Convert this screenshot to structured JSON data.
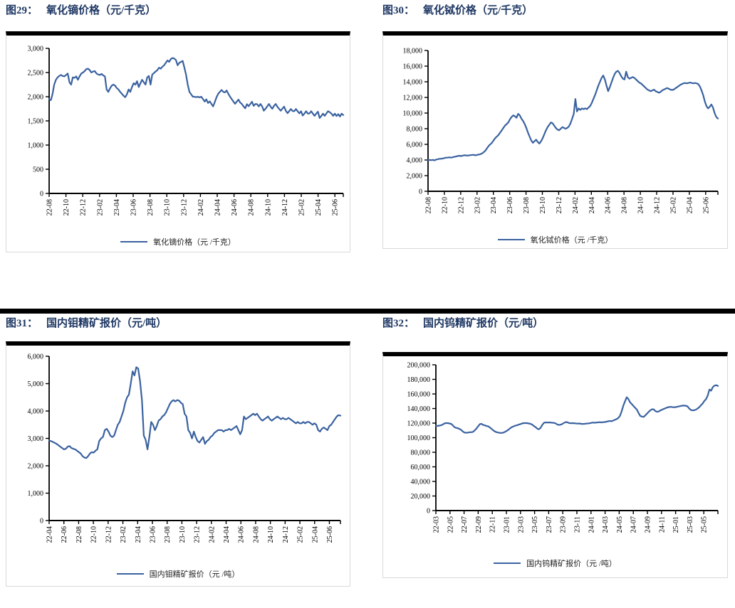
{
  "page": {
    "background": "#ffffff",
    "divider_color": "#000000",
    "title_color": "#1F3864",
    "line_color": "#3A62A0"
  },
  "figures": [
    {
      "id": "fig29",
      "label": "图29：",
      "title": "氧化镝价格（元/千克）",
      "legend": "氧化镝价格（元 /千克）",
      "chart_data": {
        "type": "line",
        "color": "#3A62A0",
        "ylim": [
          0,
          3000
        ],
        "yticks": [
          0,
          500,
          1000,
          1500,
          2000,
          2500,
          3000
        ],
        "x_tick_labels": [
          "22-08",
          "22-10",
          "22-12",
          "23-02",
          "23-04",
          "23-06",
          "23-08",
          "23-10",
          "23-12",
          "24-02",
          "24-04",
          "24-06",
          "24-08",
          "24-10",
          "24-12",
          "25-02",
          "25-04",
          "25-06"
        ],
        "x_tick_interval_months": 2,
        "x_span_months": 35,
        "grid": false,
        "legend_position": "bottom",
        "values": [
          1950,
          1930,
          2050,
          2250,
          2350,
          2400,
          2430,
          2450,
          2430,
          2420,
          2450,
          2480,
          2300,
          2250,
          2400,
          2390,
          2420,
          2350,
          2420,
          2480,
          2500,
          2530,
          2570,
          2580,
          2550,
          2500,
          2520,
          2530,
          2480,
          2460,
          2450,
          2470,
          2440,
          2420,
          2150,
          2100,
          2170,
          2230,
          2250,
          2230,
          2180,
          2150,
          2100,
          2060,
          2020,
          1990,
          2050,
          2150,
          2100,
          2200,
          2280,
          2250,
          2320,
          2200,
          2280,
          2350,
          2300,
          2250,
          2400,
          2430,
          2250,
          2460,
          2490,
          2520,
          2550,
          2600,
          2580,
          2620,
          2650,
          2700,
          2750,
          2720,
          2780,
          2800,
          2790,
          2760,
          2650,
          2700,
          2720,
          2740,
          2600,
          2450,
          2250,
          2100,
          2050,
          2000,
          2000,
          1990,
          2000,
          1985,
          2000,
          1950,
          1900,
          1945,
          1870,
          1905,
          1850,
          1800,
          1890,
          1990,
          2060,
          2100,
          2140,
          2100,
          2090,
          2130,
          2060,
          2000,
          1950,
          1900,
          1855,
          1900,
          1940,
          1880,
          1850,
          1800,
          1760,
          1845,
          1805,
          1850,
          1895,
          1810,
          1850,
          1845,
          1800,
          1850,
          1800,
          1710,
          1750,
          1800,
          1850,
          1795,
          1750,
          1810,
          1850,
          1795,
          1750,
          1710,
          1755,
          1795,
          1710,
          1660,
          1700,
          1745,
          1705,
          1700,
          1745,
          1700,
          1655,
          1700,
          1610,
          1650,
          1700,
          1650,
          1655,
          1700,
          1650,
          1605,
          1650,
          1690,
          1560,
          1600,
          1650,
          1605,
          1655,
          1700,
          1680,
          1650,
          1605,
          1650,
          1600,
          1640,
          1590,
          1650,
          1620
        ]
      }
    },
    {
      "id": "fig30",
      "label": "图30：",
      "title": "氧化铽价格（元/千克）",
      "legend": "氧化铽价格（元 /千克）",
      "chart_data": {
        "type": "line",
        "color": "#3A62A0",
        "ylim": [
          0,
          18000
        ],
        "yticks": [
          0,
          2000,
          4000,
          6000,
          8000,
          10000,
          12000,
          14000,
          16000,
          18000
        ],
        "x_tick_labels": [
          "22-08",
          "22-10",
          "22-12",
          "23-02",
          "23-04",
          "23-06",
          "23-08",
          "23-10",
          "23-12",
          "24-02",
          "24-04",
          "24-06",
          "24-08",
          "24-10",
          "24-12",
          "25-02",
          "25-04",
          "25-06"
        ],
        "x_tick_interval_months": 2,
        "x_span_months": 35.5,
        "grid": false,
        "legend_position": "bottom",
        "values": [
          4000,
          4000,
          3980,
          4020,
          3950,
          4060,
          4100,
          4150,
          4150,
          4200,
          4250,
          4300,
          4300,
          4350,
          4300,
          4350,
          4400,
          4450,
          4500,
          4550,
          4500,
          4550,
          4600,
          4600,
          4550,
          4600,
          4620,
          4650,
          4650,
          4600,
          4650,
          4700,
          4750,
          4850,
          5000,
          5200,
          5500,
          5800,
          6000,
          6200,
          6500,
          6800,
          7000,
          7200,
          7500,
          7800,
          8100,
          8400,
          8600,
          8800,
          9200,
          9500,
          9700,
          9600,
          9400,
          9900,
          9700,
          9300,
          9000,
          8600,
          8100,
          7500,
          7000,
          6500,
          6200,
          6400,
          6600,
          6300,
          6100,
          6400,
          6800,
          7300,
          7800,
          8200,
          8500,
          8800,
          8700,
          8400,
          8100,
          7900,
          7800,
          8000,
          8200,
          8100,
          8000,
          8100,
          8300,
          8700,
          9300,
          9900,
          11800,
          10200,
          10600,
          10400,
          10600,
          10500,
          10600,
          10500,
          10700,
          10900,
          11300,
          11800,
          12300,
          12900,
          13500,
          14000,
          14500,
          14800,
          14300,
          13500,
          12800,
          13300,
          13900,
          14500,
          15000,
          15300,
          15400,
          15100,
          14700,
          14400,
          14300,
          15300,
          14600,
          14400,
          14500,
          14600,
          14500,
          14300,
          14100,
          13900,
          13800,
          13600,
          13400,
          13200,
          13000,
          12900,
          12800,
          12900,
          13000,
          12800,
          12700,
          12600,
          12700,
          12900,
          13000,
          13100,
          13200,
          13100,
          13000,
          12950,
          13000,
          13150,
          13300,
          13450,
          13600,
          13700,
          13800,
          13850,
          13800,
          13850,
          13900,
          13850,
          13800,
          13850,
          13800,
          13700,
          13400,
          12900,
          12300,
          11500,
          10900,
          10600,
          10800,
          11100,
          10700,
          10000,
          9500,
          9300
        ]
      }
    },
    {
      "id": "fig31",
      "label": "图31：",
      "title": "国内钼精矿报价（元/吨）",
      "legend": "国内钼精矿报价（元 /吨）",
      "chart_data": {
        "type": "line",
        "color": "#3A62A0",
        "ylim": [
          0,
          6000
        ],
        "yticks": [
          0,
          1000,
          2000,
          3000,
          4000,
          5000,
          6000
        ],
        "x_tick_labels": [
          "22-04",
          "22-06",
          "22-08",
          "22-10",
          "22-12",
          "23-02",
          "23-04",
          "23-06",
          "23-08",
          "23-10",
          "23-12",
          "24-02",
          "24-04",
          "24-06",
          "24-08",
          "24-10",
          "24-12",
          "25-02",
          "25-04",
          "25-06"
        ],
        "x_tick_interval_months": 2,
        "x_span_months": 39.5,
        "grid": false,
        "legend_position": "bottom",
        "values": [
          2920,
          2900,
          2870,
          2840,
          2800,
          2750,
          2700,
          2650,
          2600,
          2620,
          2700,
          2720,
          2650,
          2620,
          2600,
          2550,
          2500,
          2450,
          2350,
          2300,
          2280,
          2350,
          2450,
          2500,
          2480,
          2550,
          2600,
          2900,
          3000,
          3050,
          3300,
          3350,
          3250,
          3100,
          3050,
          3100,
          3300,
          3500,
          3600,
          3800,
          4000,
          4300,
          4500,
          4600,
          5000,
          5450,
          5300,
          5600,
          5550,
          5100,
          4400,
          3100,
          2950,
          2600,
          3050,
          3600,
          3500,
          3300,
          3450,
          3650,
          3700,
          3800,
          3850,
          3950,
          4100,
          4250,
          4350,
          4400,
          4350,
          4400,
          4380,
          4300,
          4250,
          3900,
          3800,
          3300,
          3200,
          3000,
          3250,
          3050,
          2900,
          2850,
          2950,
          3050,
          2800,
          2900,
          2950,
          3050,
          3100,
          3200,
          3250,
          3300,
          3300,
          3300,
          3250,
          3300,
          3300,
          3350,
          3300,
          3350,
          3400,
          3450,
          3300,
          3150,
          3300,
          3800,
          3700,
          3750,
          3800,
          3850,
          3900,
          3850,
          3900,
          3800,
          3700,
          3650,
          3700,
          3750,
          3800,
          3700,
          3650,
          3700,
          3750,
          3800,
          3750,
          3700,
          3750,
          3700,
          3700,
          3750,
          3700,
          3650,
          3600,
          3550,
          3600,
          3550,
          3550,
          3600,
          3550,
          3600,
          3600,
          3550,
          3500,
          3550,
          3500,
          3300,
          3250,
          3350,
          3400,
          3350,
          3300,
          3450,
          3500,
          3600,
          3700,
          3800,
          3850,
          3830
        ]
      }
    },
    {
      "id": "fig32",
      "label": "图32：",
      "title": "国内钨精矿报价（元/吨）",
      "legend": "国内钨精矿报价（元 /吨）",
      "chart_data": {
        "type": "line",
        "color": "#3A62A0",
        "ylim": [
          0,
          200000
        ],
        "yticks": [
          0,
          20000,
          40000,
          60000,
          80000,
          100000,
          120000,
          140000,
          160000,
          180000,
          200000
        ],
        "x_tick_labels": [
          "22-03",
          "22-05",
          "22-07",
          "22-09",
          "22-11",
          "23-01",
          "23-03",
          "23-05",
          "23-07",
          "23-09",
          "23-11",
          "24-01",
          "24-03",
          "24-05",
          "24-07",
          "24-09",
          "24-11",
          "25-01",
          "25-03",
          "25-05"
        ],
        "x_tick_interval_months": 2,
        "x_span_months": 40,
        "grid": false,
        "legend_position": "bottom",
        "values": [
          116000,
          116200,
          116500,
          117000,
          118000,
          119500,
          120000,
          120000,
          119500,
          119000,
          117000,
          114500,
          113500,
          113000,
          112000,
          110500,
          108500,
          107000,
          106800,
          107000,
          107500,
          107500,
          108000,
          110000,
          112500,
          115500,
          118500,
          119000,
          117500,
          117000,
          116000,
          115500,
          114000,
          112000,
          110000,
          108500,
          107500,
          107000,
          106500,
          106500,
          107000,
          108000,
          109500,
          111000,
          113000,
          114500,
          115500,
          116500,
          117000,
          118000,
          118500,
          119500,
          120000,
          120000,
          120000,
          119500,
          119000,
          118000,
          116000,
          114500,
          112500,
          111500,
          113500,
          117500,
          120500,
          121000,
          120800,
          121000,
          120800,
          120500,
          120300,
          119500,
          118000,
          117500,
          118000,
          119000,
          120500,
          121500,
          121000,
          120000,
          119800,
          120000,
          119800,
          119500,
          119300,
          119500,
          119000,
          118800,
          119000,
          119300,
          119500,
          119800,
          120300,
          120800,
          120500,
          120800,
          121000,
          121300,
          121000,
          121300,
          121500,
          122000,
          122500,
          123000,
          122500,
          123500,
          124500,
          125500,
          127000,
          130000,
          136000,
          144000,
          150000,
          155500,
          153000,
          148500,
          146000,
          143500,
          141000,
          138500,
          134000,
          130000,
          129000,
          128500,
          130500,
          133000,
          135500,
          137500,
          139000,
          138800,
          136500,
          135500,
          136000,
          137500,
          138500,
          139500,
          140500,
          141500,
          142000,
          142300,
          142000,
          141800,
          142000,
          142500,
          143000,
          143500,
          144000,
          144000,
          143800,
          143000,
          140000,
          138000,
          137500,
          137800,
          138500,
          140000,
          142000,
          144500,
          147000,
          150500,
          153000,
          158000,
          166000,
          164500,
          169500,
          171500,
          172000,
          171000
        ]
      }
    }
  ]
}
